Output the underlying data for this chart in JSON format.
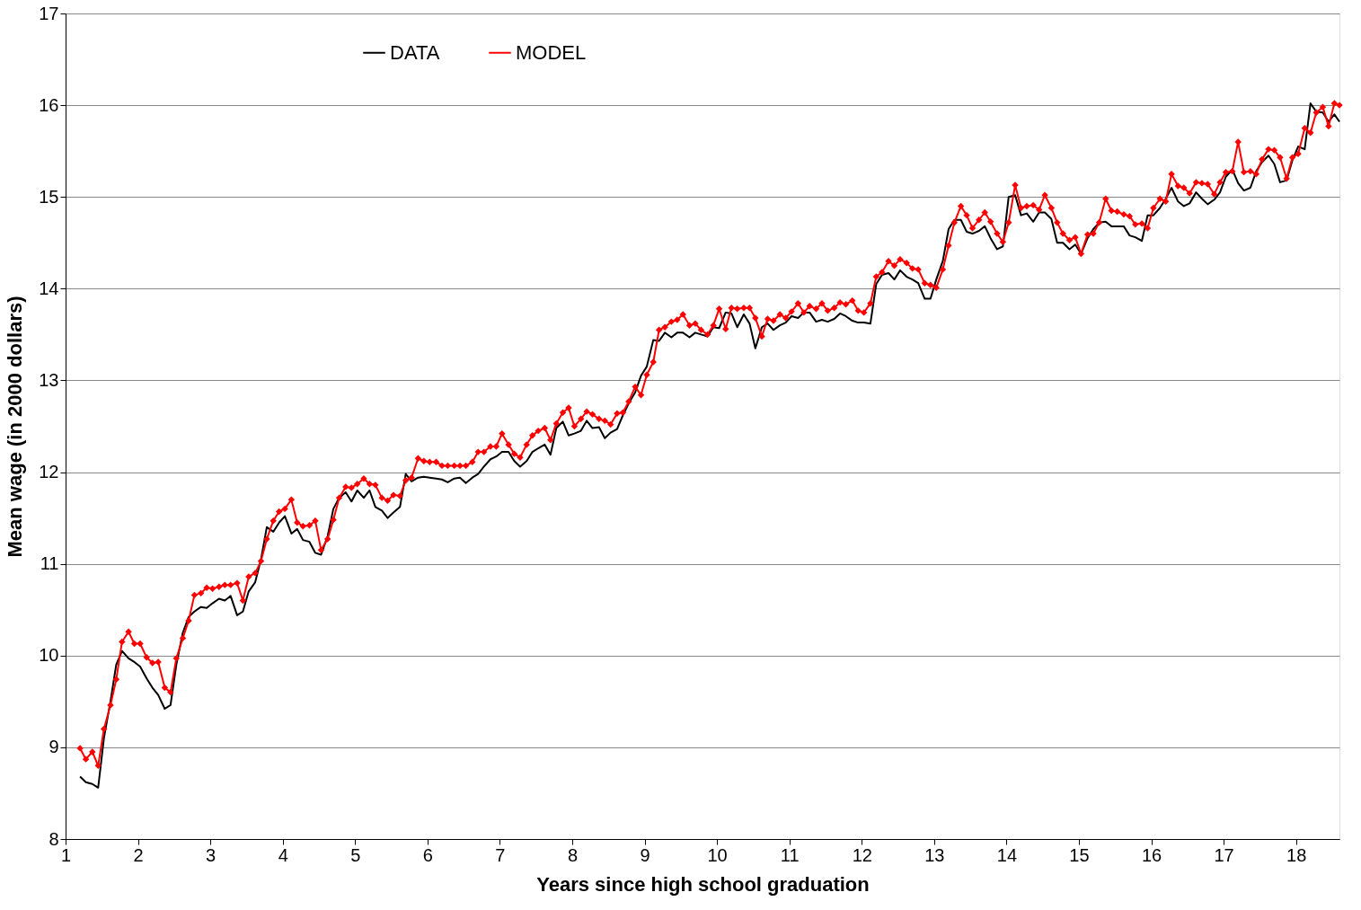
{
  "chart_data": {
    "type": "line",
    "xlabel": "Years since high school graduation",
    "ylabel": "Mean wage (in 2000 dollars)",
    "xlim": [
      1,
      18.6
    ],
    "xticks": [
      1,
      2,
      3,
      4,
      5,
      6,
      7,
      8,
      9,
      10,
      11,
      12,
      13,
      14,
      15,
      16,
      17,
      18
    ],
    "ylim": [
      8,
      17
    ],
    "yticks": [
      8,
      9,
      10,
      11,
      12,
      13,
      14,
      15,
      16,
      17
    ],
    "grid": "y",
    "legend": "top",
    "x": [
      1.2,
      1.28,
      1.37,
      1.45,
      1.53,
      1.62,
      1.7,
      1.78,
      1.87,
      1.95,
      2.03,
      2.12,
      2.2,
      2.28,
      2.37,
      2.45,
      2.53,
      2.62,
      2.7,
      2.78,
      2.87,
      2.95,
      3.03,
      3.12,
      3.2,
      3.28,
      3.37,
      3.45,
      3.53,
      3.62,
      3.7,
      3.78,
      3.87,
      3.95,
      4.03,
      4.12,
      4.2,
      4.28,
      4.37,
      4.45,
      4.53,
      4.62,
      4.7,
      4.78,
      4.87,
      4.95,
      5.03,
      5.12,
      5.2,
      5.28,
      5.37,
      5.45,
      5.53,
      5.62,
      5.7,
      5.78,
      5.87,
      5.95,
      6.03,
      6.12,
      6.2,
      6.28,
      6.37,
      6.45,
      6.53,
      6.62,
      6.7,
      6.78,
      6.87,
      6.95,
      7.03,
      7.12,
      7.2,
      7.28,
      7.37,
      7.45,
      7.53,
      7.62,
      7.7,
      7.78,
      7.87,
      7.95,
      8.03,
      8.12,
      8.2,
      8.28,
      8.37,
      8.45,
      8.53,
      8.62,
      8.7,
      8.78,
      8.87,
      8.95,
      9.03,
      9.12,
      9.2,
      9.28,
      9.37,
      9.45,
      9.53,
      9.62,
      9.7,
      9.78,
      9.87,
      9.95,
      10.03,
      10.12,
      10.2,
      10.28,
      10.37,
      10.45,
      10.53,
      10.62,
      10.7,
      10.78,
      10.87,
      10.95,
      11.03,
      11.12,
      11.2,
      11.28,
      11.37,
      11.45,
      11.53,
      11.62,
      11.7,
      11.78,
      11.87,
      11.95,
      12.03,
      12.12,
      12.2,
      12.28,
      12.37,
      12.45,
      12.53,
      12.62,
      12.7,
      12.78,
      12.87,
      12.95,
      13.03,
      13.12,
      13.2,
      13.28,
      13.37,
      13.45,
      13.53,
      13.62,
      13.7,
      13.78,
      13.87,
      13.95,
      14.03,
      14.12,
      14.2,
      14.28,
      14.37,
      14.45,
      14.53,
      14.62,
      14.7,
      14.78,
      14.87,
      14.95,
      15.03,
      15.12,
      15.2,
      15.28,
      15.37,
      15.45,
      15.53,
      15.62,
      15.7,
      15.78,
      15.87,
      15.95,
      16.03,
      16.12,
      16.2,
      16.28,
      16.37,
      16.45,
      16.53,
      16.62,
      16.7,
      16.78,
      16.87,
      16.95,
      17.03,
      17.12,
      17.2,
      17.28,
      17.37,
      17.45,
      17.53,
      17.62,
      17.7,
      17.78,
      17.87,
      17.95,
      18.03,
      18.12,
      18.2,
      18.28,
      18.37,
      18.45,
      18.53,
      18.6
    ],
    "series": [
      {
        "name": "DATA",
        "color": "#000000",
        "marker": "none",
        "values": [
          8.68,
          8.62,
          8.6,
          8.56,
          9.1,
          9.5,
          9.9,
          10.05,
          9.97,
          9.93,
          9.88,
          9.75,
          9.65,
          9.57,
          9.42,
          9.46,
          9.9,
          10.25,
          10.42,
          10.48,
          10.53,
          10.52,
          10.57,
          10.62,
          10.6,
          10.65,
          10.44,
          10.48,
          10.7,
          10.8,
          11.05,
          11.4,
          11.35,
          11.45,
          11.52,
          11.33,
          11.38,
          11.26,
          11.24,
          11.12,
          11.1,
          11.3,
          11.6,
          11.72,
          11.78,
          11.68,
          11.8,
          11.72,
          11.8,
          11.62,
          11.58,
          11.5,
          11.56,
          11.62,
          11.98,
          11.9,
          11.94,
          11.95,
          11.94,
          11.93,
          11.92,
          11.89,
          11.93,
          11.94,
          11.88,
          11.94,
          11.98,
          12.06,
          12.14,
          12.17,
          12.22,
          12.22,
          12.12,
          12.06,
          12.12,
          12.22,
          12.26,
          12.3,
          12.19,
          12.48,
          12.55,
          12.4,
          12.42,
          12.45,
          12.56,
          12.48,
          12.49,
          12.37,
          12.43,
          12.47,
          12.62,
          12.75,
          12.87,
          13.05,
          13.15,
          13.44,
          13.43,
          13.52,
          13.47,
          13.52,
          13.52,
          13.47,
          13.52,
          13.5,
          13.48,
          13.58,
          13.57,
          13.74,
          13.73,
          13.58,
          13.72,
          13.62,
          13.35,
          13.58,
          13.62,
          13.55,
          13.6,
          13.63,
          13.7,
          13.68,
          13.74,
          13.74,
          13.64,
          13.66,
          13.64,
          13.67,
          13.73,
          13.7,
          13.65,
          13.63,
          13.63,
          13.62,
          14.05,
          14.15,
          14.17,
          14.1,
          14.2,
          14.13,
          14.1,
          14.06,
          13.89,
          13.89,
          14.1,
          14.3,
          14.65,
          14.75,
          14.75,
          14.62,
          14.6,
          14.63,
          14.68,
          14.55,
          14.43,
          14.46,
          15.0,
          15.02,
          14.8,
          14.82,
          14.73,
          14.83,
          14.83,
          14.76,
          14.5,
          14.5,
          14.43,
          14.48,
          14.38,
          14.55,
          14.65,
          14.72,
          14.73,
          14.68,
          14.68,
          14.68,
          14.58,
          14.56,
          14.52,
          14.8,
          14.8,
          14.88,
          14.98,
          15.1,
          14.95,
          14.9,
          14.93,
          15.05,
          14.98,
          14.92,
          14.97,
          15.05,
          15.22,
          15.3,
          15.15,
          15.07,
          15.1,
          15.28,
          15.38,
          15.45,
          15.36,
          15.16,
          15.18,
          15.4,
          15.55,
          15.52,
          16.02,
          15.93,
          15.92,
          15.82,
          15.9,
          15.82
        ]
      },
      {
        "name": "MODEL",
        "color": "#ff0000",
        "marker": "diamond",
        "values": [
          8.99,
          8.87,
          8.95,
          8.8,
          9.2,
          9.46,
          9.74,
          10.15,
          10.26,
          10.13,
          10.13,
          9.98,
          9.92,
          9.93,
          9.65,
          9.6,
          9.97,
          10.19,
          10.38,
          10.66,
          10.68,
          10.74,
          10.73,
          10.75,
          10.77,
          10.77,
          10.79,
          10.6,
          10.86,
          10.9,
          11.03,
          11.27,
          11.47,
          11.57,
          11.6,
          11.7,
          11.45,
          11.41,
          11.42,
          11.47,
          11.15,
          11.27,
          11.48,
          11.72,
          11.84,
          11.83,
          11.87,
          11.93,
          11.87,
          11.86,
          11.72,
          11.69,
          11.75,
          11.74,
          11.91,
          11.94,
          12.15,
          12.12,
          12.11,
          12.11,
          12.07,
          12.07,
          12.07,
          12.07,
          12.07,
          12.11,
          12.22,
          12.22,
          12.28,
          12.28,
          12.42,
          12.3,
          12.2,
          12.16,
          12.3,
          12.4,
          12.45,
          12.48,
          12.35,
          12.53,
          12.65,
          12.7,
          12.5,
          12.58,
          12.66,
          12.63,
          12.58,
          12.56,
          12.52,
          12.64,
          12.65,
          12.77,
          12.93,
          12.84,
          13.06,
          13.2,
          13.55,
          13.58,
          13.64,
          13.66,
          13.72,
          13.6,
          13.62,
          13.55,
          13.5,
          13.6,
          13.78,
          13.56,
          13.79,
          13.78,
          13.79,
          13.79,
          13.68,
          13.48,
          13.67,
          13.65,
          13.72,
          13.68,
          13.75,
          13.84,
          13.74,
          13.81,
          13.78,
          13.84,
          13.76,
          13.79,
          13.85,
          13.83,
          13.87,
          13.76,
          13.74,
          13.84,
          14.13,
          14.18,
          14.3,
          14.25,
          14.32,
          14.28,
          14.22,
          14.21,
          14.06,
          14.04,
          14.01,
          14.21,
          14.47,
          14.72,
          14.9,
          14.8,
          14.66,
          14.75,
          14.83,
          14.73,
          14.6,
          14.51,
          14.72,
          15.13,
          14.88,
          14.9,
          14.91,
          14.86,
          15.02,
          14.88,
          14.72,
          14.6,
          14.53,
          14.56,
          14.38,
          14.59,
          14.6,
          14.72,
          14.98,
          14.85,
          14.84,
          14.81,
          14.79,
          14.7,
          14.71,
          14.66,
          14.88,
          14.98,
          14.95,
          15.25,
          15.12,
          15.1,
          15.04,
          15.16,
          15.15,
          15.14,
          15.03,
          15.16,
          15.27,
          15.28,
          15.6,
          15.27,
          15.28,
          15.25,
          15.41,
          15.52,
          15.51,
          15.43,
          15.2,
          15.43,
          15.47,
          15.75,
          15.7,
          15.92,
          15.98,
          15.77,
          16.02,
          16.0
        ]
      }
    ]
  }
}
